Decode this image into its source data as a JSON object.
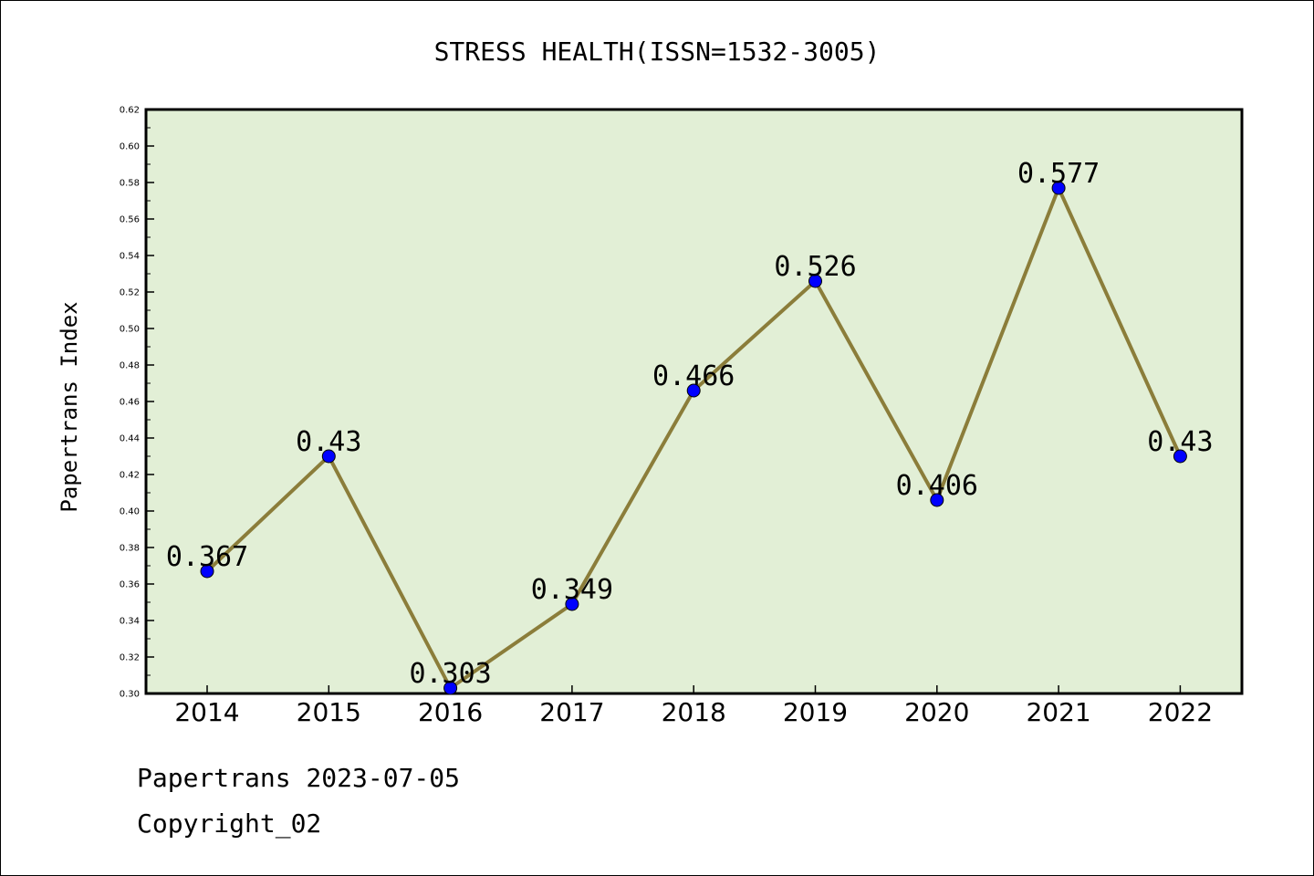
{
  "chart_data": {
    "type": "line",
    "title": "STRESS HEALTH(ISSN=1532-3005)",
    "xlabel": "",
    "ylabel": "Papertrans Index",
    "categories": [
      "2014",
      "2015",
      "2016",
      "2017",
      "2018",
      "2019",
      "2020",
      "2021",
      "2022"
    ],
    "values": [
      0.367,
      0.43,
      0.303,
      0.349,
      0.466,
      0.526,
      0.406,
      0.577,
      0.43
    ],
    "data_labels": [
      "0.367",
      "0.43",
      "0.303",
      "0.349",
      "0.466",
      "0.526",
      "0.406",
      "0.577",
      "0.43"
    ],
    "ylim": [
      0.3,
      0.62
    ],
    "yticks": [
      "0.30",
      "0.32",
      "0.34",
      "0.36",
      "0.38",
      "0.40",
      "0.42",
      "0.44",
      "0.46",
      "0.48",
      "0.50",
      "0.52",
      "0.54",
      "0.56",
      "0.58",
      "0.60",
      "0.62"
    ],
    "grid": false,
    "colors": {
      "plot_background": "#e2efd6",
      "line": "#8b7d3a",
      "marker": "#0000ff"
    }
  },
  "footer": {
    "line1": "Papertrans 2023-07-05",
    "line2": "Copyright_02"
  }
}
